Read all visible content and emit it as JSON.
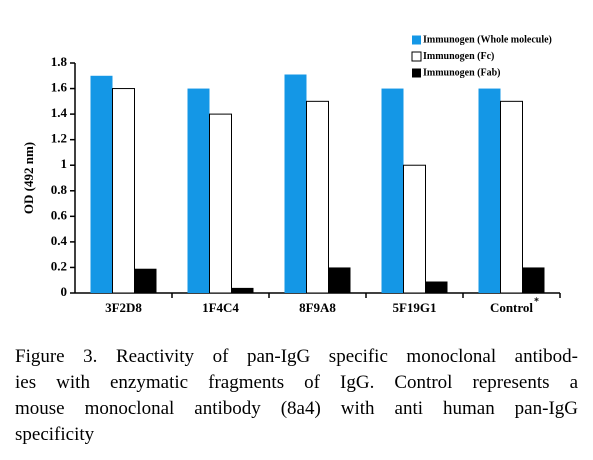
{
  "chart_data": {
    "type": "bar",
    "categories": [
      "3F2D8",
      "1F4C4",
      "8F9A8",
      "5F19G1",
      "Control"
    ],
    "footnote_marker": "*",
    "y_label": "OD (492 nm)",
    "series": [
      {
        "name": "Immunogen (Whole molecule)",
        "color": "#1497e6",
        "values": [
          1.7,
          1.6,
          1.71,
          1.6,
          1.6
        ]
      },
      {
        "name": "Immunogen (Fc)",
        "color": "#ffffff",
        "values": [
          1.6,
          1.4,
          1.5,
          1.0,
          1.5
        ]
      },
      {
        "name": "Immunogen (Fab)",
        "color": "#000000",
        "values": [
          0.19,
          0.04,
          0.2,
          0.09,
          0.2
        ]
      }
    ],
    "ylim": [
      0,
      1.8
    ],
    "yticks": [
      0,
      0.2,
      0.4,
      0.6,
      0.8,
      1,
      1.2,
      1.4,
      1.6,
      1.8
    ],
    "legend": "top-right"
  },
  "caption": {
    "lines": [
      "Figure 3. Reactivity of pan-IgG specific monoclonal antibod-",
      "ies with enzymatic fragments of IgG. Control represents a",
      "mouse monoclonal antibody (8a4) with anti human pan-IgG",
      "specificity"
    ]
  }
}
